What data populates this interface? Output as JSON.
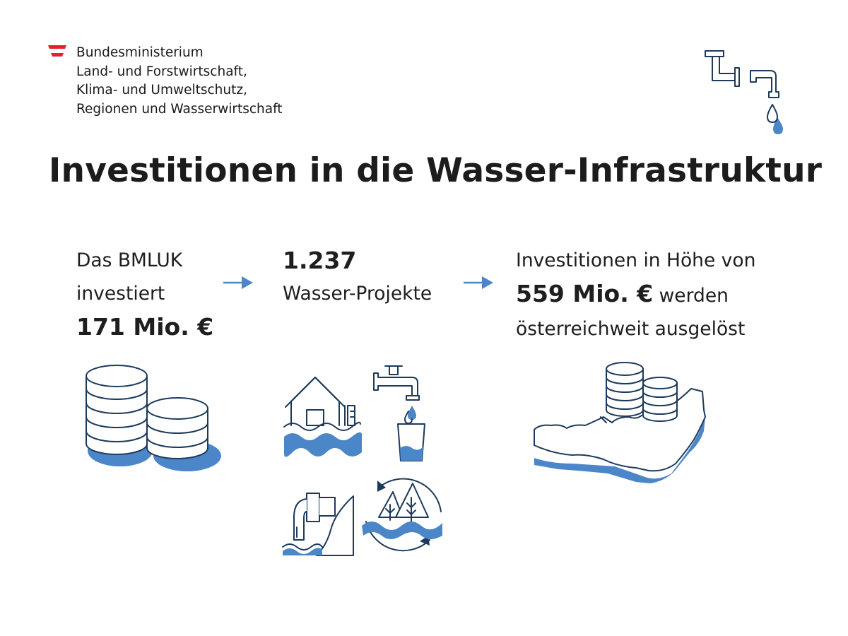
{
  "ministry": {
    "lines": [
      "Bundesministerium",
      "Land- und Forstwirtschaft,",
      "Klima- und Umweltschutz,",
      "Regionen und Wasserwirtschaft"
    ]
  },
  "title": "Investitionen in die Wasser-Infrastruktur",
  "step1": {
    "line1": "Das BMLUK",
    "line2": "investiert",
    "amount": "171 Mio. €"
  },
  "step2": {
    "count": "1.237",
    "label": "Wasser-Projekte"
  },
  "step3": {
    "line1": "Investitionen in Höhe von",
    "amount": "559 Mio. €",
    "line2_rest": " werden",
    "line3": "österreichweit ausgelöst"
  },
  "colors": {
    "accent_blue": "#4a86c8",
    "line_navy": "#1d3a5c",
    "austria_red": "#e4202e"
  },
  "icons": [
    "austria-flag-icon",
    "pipe-drip-icon",
    "coin-stacks-icon",
    "flood-house-icon",
    "tap-glass-icon",
    "wastewater-pipe-icon",
    "forest-water-cycle-icon",
    "austria-map-coins-icon",
    "arrow-right-icon"
  ]
}
